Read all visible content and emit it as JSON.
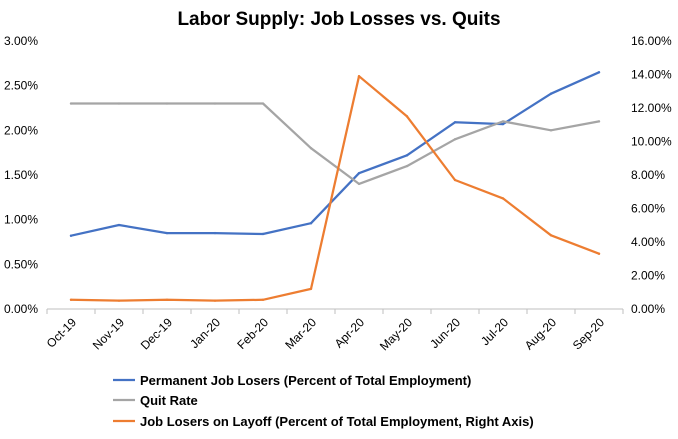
{
  "chart_data": {
    "type": "line",
    "title": "Labor Supply: Job Losses vs. Quits",
    "categories": [
      "Oct-19",
      "Nov-19",
      "Dec-19",
      "Jan-20",
      "Feb-20",
      "Mar-20",
      "Apr-20",
      "May-20",
      "Jun-20",
      "Jul-20",
      "Aug-20",
      "Sep-20"
    ],
    "left_axis": {
      "ylim": [
        0,
        3.0
      ],
      "ticks": [
        0,
        0.5,
        1.0,
        1.5,
        2.0,
        2.5,
        3.0
      ],
      "tick_labels": [
        "0.00%",
        "0.50%",
        "1.00%",
        "1.50%",
        "2.00%",
        "2.50%",
        "3.00%"
      ]
    },
    "right_axis": {
      "ylim": [
        0,
        16.0
      ],
      "ticks": [
        0,
        2,
        4,
        6,
        8,
        10,
        12,
        14,
        16
      ],
      "tick_labels": [
        "0.00%",
        "2.00%",
        "4.00%",
        "6.00%",
        "8.00%",
        "10.00%",
        "12.00%",
        "14.00%",
        "16.00%"
      ]
    },
    "grid": false,
    "legend_position": "bottom",
    "series": [
      {
        "name": "Permanent Job Losers (Percent of Total Employment)",
        "axis": "left",
        "color": "#4472C4",
        "values": [
          0.82,
          0.94,
          0.85,
          0.85,
          0.84,
          0.96,
          1.52,
          1.72,
          2.09,
          2.07,
          2.41,
          2.65
        ]
      },
      {
        "name": "Quit Rate",
        "axis": "left",
        "color": "#A5A5A5",
        "values": [
          2.3,
          2.3,
          2.3,
          2.3,
          2.3,
          1.8,
          1.4,
          1.6,
          1.9,
          2.1,
          2.0,
          2.1
        ]
      },
      {
        "name": "Job Losers on Layoff (Percent of Total Employment, Right Axis)",
        "axis": "right",
        "color": "#ED7D31",
        "values": [
          0.55,
          0.5,
          0.55,
          0.5,
          0.55,
          1.2,
          13.9,
          11.5,
          7.7,
          6.6,
          4.4,
          3.3
        ]
      }
    ]
  }
}
